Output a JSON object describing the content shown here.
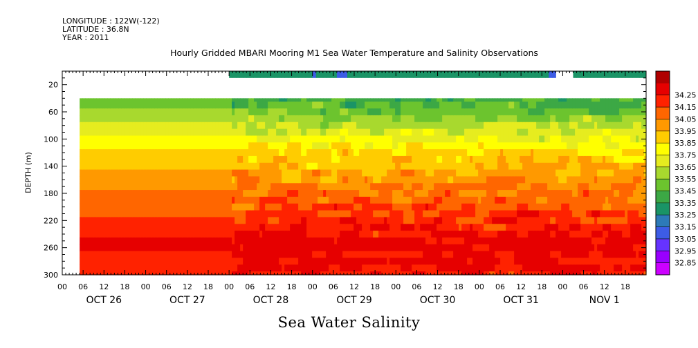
{
  "meta": {
    "longitude": "LONGITUDE : 122W(-122)",
    "latitude": "LATITUDE : 36.8N",
    "year": "YEAR : 2011"
  },
  "chart_data": {
    "type": "heatmap",
    "title": "Hourly Gridded MBARI Mooring M1 Sea Water Temperature and Salinity Observations",
    "xlabel": "Sea Water Salinity",
    "ylabel": "DEPTH (m)",
    "ylim": [
      300,
      0
    ],
    "yticks": [
      20,
      60,
      100,
      140,
      180,
      220,
      260,
      300
    ],
    "x_range_hours": [
      0,
      168
    ],
    "x_hour_tick_labels": [
      "00",
      "06",
      "12",
      "18"
    ],
    "x_day_labels": [
      "OCT 26",
      "OCT 27",
      "OCT 28",
      "OCT 29",
      "OCT 30",
      "OCT 31",
      "NOV  1"
    ],
    "data_start": "OCT 26 05:00",
    "data_end": "NOV 1 23:00",
    "colorbar": {
      "levels": [
        32.85,
        32.95,
        33.05,
        33.15,
        33.25,
        33.35,
        33.45,
        33.55,
        33.65,
        33.75,
        33.85,
        33.95,
        34.05,
        34.15,
        34.25
      ],
      "level_labels": [
        "32.85",
        "32.95",
        "33.05",
        "33.15",
        "33.25",
        "33.35",
        "33.45",
        "33.55",
        "33.65",
        "33.75",
        "33.85",
        "33.95",
        "34.05",
        "34.15",
        "34.25"
      ],
      "colors": [
        "#cc00ff",
        "#9900ff",
        "#6633ff",
        "#3d5ce6",
        "#2d7ab8",
        "#1a9466",
        "#3ca845",
        "#6cc42e",
        "#a8d92e",
        "#e6ec1f",
        "#ffff00",
        "#ffcc00",
        "#ff9900",
        "#ff6600",
        "#ff2200",
        "#e60000",
        "#b00000"
      ]
    },
    "surface_depth_m": 10,
    "surface_salinity": 33.3,
    "surface_gap_hours": [
      [
        0,
        48
      ],
      [
        142,
        147
      ]
    ],
    "depths_m": [
      40,
      50,
      60,
      70,
      80,
      90,
      100,
      110,
      120,
      130,
      140,
      150,
      160,
      170,
      180,
      190,
      200,
      210,
      220,
      230,
      240,
      250,
      260,
      270,
      280,
      290,
      300
    ],
    "profile_oct26_27": [
      33.45,
      33.5,
      33.55,
      33.6,
      33.65,
      33.7,
      33.75,
      33.8,
      33.85,
      33.9,
      33.93,
      33.96,
      33.99,
      34.02,
      34.05,
      34.08,
      34.11,
      34.14,
      34.17,
      34.2,
      34.23,
      34.27,
      34.3,
      34.24,
      34.2,
      34.2,
      34.2
    ],
    "profile_oct28_nov1_mean": [
      33.42,
      33.45,
      33.5,
      33.56,
      33.62,
      33.68,
      33.74,
      33.8,
      33.86,
      33.91,
      33.95,
      33.99,
      34.02,
      34.05,
      34.08,
      34.11,
      34.14,
      34.17,
      34.2,
      34.23,
      34.26,
      34.29,
      34.3,
      34.28,
      34.27,
      34.26,
      34.25
    ]
  }
}
